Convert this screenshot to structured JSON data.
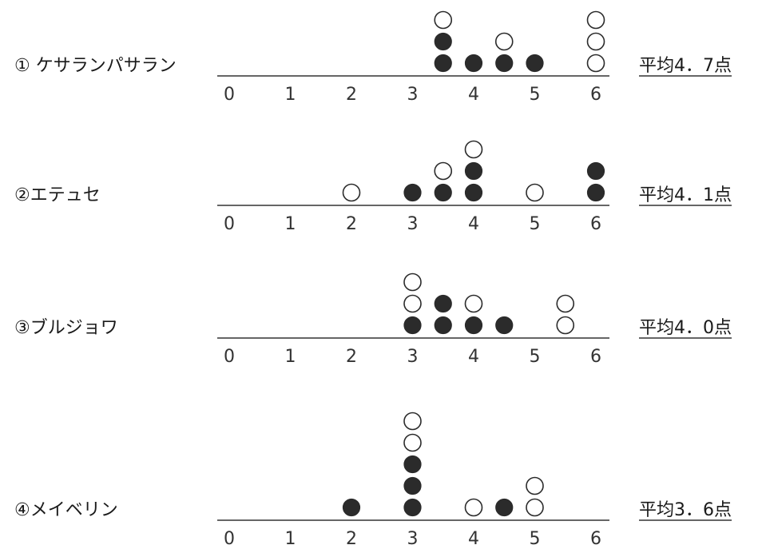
{
  "chart_data": [
    {
      "type": "scatter",
      "label": "① ケサランパサラン",
      "average_text": "平均4．7点",
      "x_ticks": [
        "0",
        "1",
        "2",
        "3",
        "4",
        "5",
        "6"
      ],
      "xlim": [
        0,
        6
      ],
      "points": [
        {
          "x": 3.5,
          "filled": true
        },
        {
          "x": 3.5,
          "filled": true
        },
        {
          "x": 3.5,
          "filled": false
        },
        {
          "x": 4,
          "filled": true
        },
        {
          "x": 4.5,
          "filled": true
        },
        {
          "x": 4.5,
          "filled": false
        },
        {
          "x": 5,
          "filled": true
        },
        {
          "x": 6,
          "filled": false
        },
        {
          "x": 6,
          "filled": false
        },
        {
          "x": 6,
          "filled": false
        }
      ]
    },
    {
      "type": "scatter",
      "label": "②エテュセ",
      "average_text": "平均4．1点",
      "x_ticks": [
        "0",
        "1",
        "2",
        "3",
        "4",
        "5",
        "6"
      ],
      "xlim": [
        0,
        6
      ],
      "points": [
        {
          "x": 2,
          "filled": false
        },
        {
          "x": 3,
          "filled": true
        },
        {
          "x": 3.5,
          "filled": true
        },
        {
          "x": 3.5,
          "filled": false
        },
        {
          "x": 4,
          "filled": true
        },
        {
          "x": 4,
          "filled": true
        },
        {
          "x": 4,
          "filled": false
        },
        {
          "x": 5,
          "filled": false
        },
        {
          "x": 6,
          "filled": true
        },
        {
          "x": 6,
          "filled": true
        }
      ]
    },
    {
      "type": "scatter",
      "label": "③ブルジョワ",
      "average_text": "平均4．0点",
      "x_ticks": [
        "0",
        "1",
        "2",
        "3",
        "4",
        "5",
        "6"
      ],
      "xlim": [
        0,
        6
      ],
      "points": [
        {
          "x": 3,
          "filled": true
        },
        {
          "x": 3,
          "filled": false
        },
        {
          "x": 3,
          "filled": false
        },
        {
          "x": 3.5,
          "filled": true
        },
        {
          "x": 3.5,
          "filled": true
        },
        {
          "x": 4,
          "filled": true
        },
        {
          "x": 4,
          "filled": false
        },
        {
          "x": 4.5,
          "filled": true
        },
        {
          "x": 5.5,
          "filled": false
        },
        {
          "x": 5.5,
          "filled": false
        }
      ]
    },
    {
      "type": "scatter",
      "label": "④メイベリン",
      "average_text": "平均3．6点",
      "x_ticks": [
        "0",
        "1",
        "2",
        "3",
        "4",
        "5",
        "6"
      ],
      "xlim": [
        0,
        6
      ],
      "points": [
        {
          "x": 2,
          "filled": true
        },
        {
          "x": 3,
          "filled": true
        },
        {
          "x": 3,
          "filled": true
        },
        {
          "x": 3,
          "filled": true
        },
        {
          "x": 3,
          "filled": false
        },
        {
          "x": 3,
          "filled": false
        },
        {
          "x": 4,
          "filled": false
        },
        {
          "x": 4.5,
          "filled": true
        },
        {
          "x": 5,
          "filled": false
        },
        {
          "x": 5,
          "filled": false
        }
      ]
    }
  ]
}
